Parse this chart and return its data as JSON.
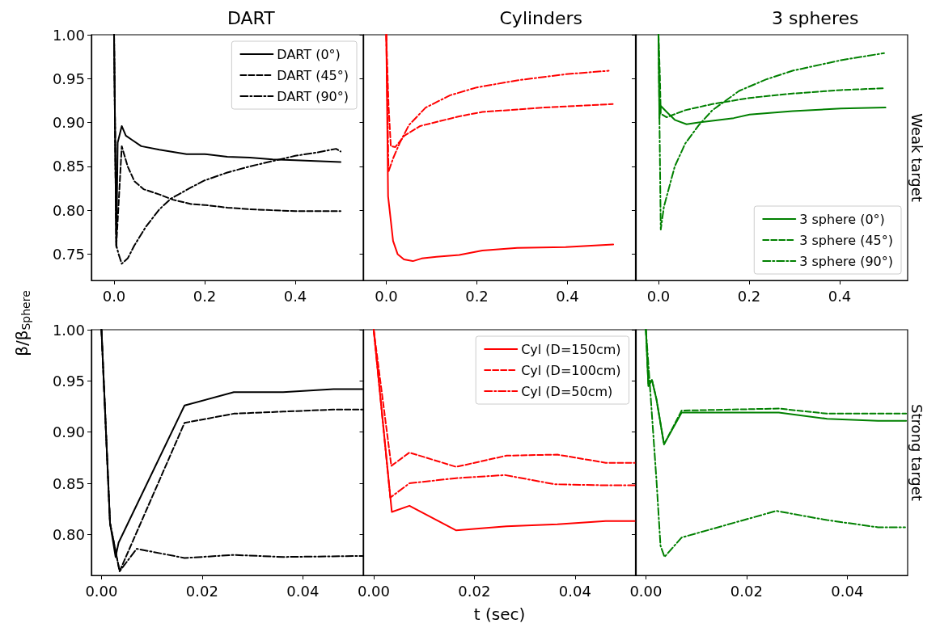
{
  "chart_data": [
    {
      "type": "line",
      "title": "DART",
      "ylabel": "β/β$_{Sphere}$",
      "xlim": [
        -0.05,
        0.55
      ],
      "xticks": [
        {
          "value": 0,
          "label": "0.0"
        },
        {
          "value": 0.2,
          "label": "0.2"
        },
        {
          "value": 0.4,
          "label": "0.4"
        }
      ],
      "ylim": [
        0.72,
        1.0
      ],
      "yticks": [
        0.75,
        {
          "value": 0.8,
          "label": "0.80"
        },
        0.85,
        {
          "value": 0.9,
          "label": "0.90"
        },
        0.95,
        {
          "value": 1,
          "label": "1.00"
        }
      ],
      "grid": false,
      "legend": "top right",
      "marker": "none",
      "series": [
        {
          "name": "DART (0°)",
          "color": "#000000",
          "line_style": "solid",
          "x": [
            0,
            0.005,
            0.008,
            0.017,
            0.026,
            0.04,
            0.06,
            0.1,
            0.16,
            0.2,
            0.25,
            0.3,
            0.35,
            0.4,
            0.5
          ],
          "values": [
            1.0,
            0.758,
            0.877,
            0.896,
            0.885,
            0.88,
            0.873,
            0.869,
            0.864,
            0.864,
            0.861,
            0.86,
            0.858,
            0.857,
            0.855
          ]
        },
        {
          "name": "DART (45°)",
          "color": "#000000",
          "line_style": "dashed",
          "x": [
            0,
            0.005,
            0.017,
            0.03,
            0.045,
            0.065,
            0.1,
            0.13,
            0.17,
            0.2,
            0.25,
            0.3,
            0.4,
            0.5
          ],
          "values": [
            1.0,
            0.76,
            0.873,
            0.85,
            0.833,
            0.824,
            0.818,
            0.812,
            0.807,
            0.806,
            0.803,
            0.801,
            0.799,
            0.799
          ]
        },
        {
          "name": "DART (90°)",
          "color": "#000000",
          "line_style": "dashdot",
          "x": [
            0,
            0.005,
            0.01,
            0.017,
            0.03,
            0.045,
            0.07,
            0.1,
            0.125,
            0.17,
            0.2,
            0.25,
            0.3,
            0.35,
            0.4,
            0.45,
            0.49,
            0.5
          ],
          "values": [
            1.0,
            0.76,
            0.75,
            0.739,
            0.745,
            0.76,
            0.781,
            0.801,
            0.813,
            0.826,
            0.834,
            0.843,
            0.85,
            0.856,
            0.862,
            0.866,
            0.87,
            0.867
          ]
        }
      ]
    },
    {
      "type": "line",
      "title": "Cylinders",
      "xlim": [
        -0.05,
        0.55
      ],
      "xticks": [
        {
          "value": 0,
          "label": "0.0"
        },
        {
          "value": 0.2,
          "label": "0.2"
        },
        {
          "value": 0.4,
          "label": "0.4"
        }
      ],
      "ylim": [
        0.72,
        1.0
      ],
      "yticks": [
        {
          "value": 0.75,
          "label": null
        },
        {
          "value": 0.8,
          "label": null
        },
        {
          "value": 0.85,
          "label": null
        },
        {
          "value": 0.9,
          "label": null
        },
        {
          "value": 0.95,
          "label": null
        },
        {
          "value": 1,
          "label": null
        }
      ],
      "tick_labels": "x",
      "grid": false,
      "marker": "none",
      "series": [
        {
          "color": "#ff0000",
          "line_style": "solid",
          "x": [
            0,
            0.004,
            0.015,
            0.025,
            0.039,
            0.059,
            0.078,
            0.111,
            0.161,
            0.212,
            0.289,
            0.396,
            0.501
          ],
          "values": [
            1.0,
            0.816,
            0.765,
            0.75,
            0.744,
            0.742,
            0.745,
            0.747,
            0.749,
            0.754,
            0.757,
            0.758,
            0.761
          ]
        },
        {
          "color": "#ff0000",
          "line_style": "dashed",
          "x": [
            0,
            0.005,
            0.01,
            0.02,
            0.04,
            0.075,
            0.161,
            0.212,
            0.348,
            0.5
          ],
          "values": [
            1.0,
            0.92,
            0.873,
            0.872,
            0.885,
            0.896,
            0.907,
            0.912,
            0.917,
            0.921
          ]
        },
        {
          "color": "#ff0000",
          "line_style": "dashdot",
          "x": [
            0,
            0.005,
            0.015,
            0.03,
            0.05,
            0.087,
            0.141,
            0.2,
            0.289,
            0.396,
            0.491
          ],
          "values": [
            1.0,
            0.844,
            0.859,
            0.877,
            0.897,
            0.917,
            0.931,
            0.94,
            0.948,
            0.955,
            0.959
          ]
        }
      ]
    },
    {
      "type": "line",
      "title": "3 spheres",
      "y2label": "Weak target",
      "xlim": [
        -0.05,
        0.55
      ],
      "xticks": [
        {
          "value": 0,
          "label": "0.0"
        },
        {
          "value": 0.2,
          "label": "0.2"
        },
        {
          "value": 0.4,
          "label": "0.4"
        }
      ],
      "ylim": [
        0.72,
        1.0
      ],
      "yticks": [
        {
          "value": 0.75,
          "label": null
        },
        {
          "value": 0.8,
          "label": null
        },
        {
          "value": 0.85,
          "label": null
        },
        {
          "value": 0.9,
          "label": null
        },
        {
          "value": 0.95,
          "label": null
        },
        {
          "value": 1,
          "label": null
        }
      ],
      "tick_labels": "x",
      "grid": false,
      "legend": "bottom right",
      "marker": "none",
      "series": [
        {
          "name": "3 sphere (0°)",
          "color": "#008000",
          "line_style": "solid",
          "x": [
            0,
            0.002,
            0.005,
            0.018,
            0.036,
            0.062,
            0.089,
            0.166,
            0.201,
            0.296,
            0.403,
            0.501
          ],
          "values": [
            1.0,
            0.905,
            0.919,
            0.912,
            0.903,
            0.898,
            0.9,
            0.905,
            0.909,
            0.913,
            0.916,
            0.917
          ]
        },
        {
          "name": "3 sphere (45°)",
          "color": "#008000",
          "line_style": "dashed",
          "x": [
            0,
            0.003,
            0.005,
            0.018,
            0.059,
            0.119,
            0.201,
            0.296,
            0.403,
            0.498
          ],
          "values": [
            1.0,
            0.955,
            0.91,
            0.906,
            0.914,
            0.921,
            0.928,
            0.933,
            0.937,
            0.939
          ]
        },
        {
          "name": "3 sphere (90°)",
          "color": "#008000",
          "line_style": "dashdot",
          "x": [
            0,
            0.005,
            0.012,
            0.036,
            0.059,
            0.089,
            0.119,
            0.178,
            0.237,
            0.296,
            0.403,
            0.498
          ],
          "values": [
            1.0,
            0.778,
            0.804,
            0.85,
            0.876,
            0.897,
            0.914,
            0.936,
            0.949,
            0.959,
            0.971,
            0.979
          ]
        }
      ]
    },
    {
      "type": "line",
      "xlim": [
        -0.002,
        0.052
      ],
      "xticks": [
        {
          "value": 0,
          "label": "0.00"
        },
        {
          "value": 0.02,
          "label": "0.02"
        },
        {
          "value": 0.04,
          "label": "0.04"
        }
      ],
      "ylim": [
        0.76,
        1.0
      ],
      "yticks": [
        {
          "value": 0.8,
          "label": "0.80"
        },
        0.85,
        {
          "value": 0.9,
          "label": "0.90"
        },
        0.95,
        {
          "value": 1,
          "label": "1.00"
        }
      ],
      "grid": false,
      "marker": "none",
      "series": [
        {
          "color": "#000000",
          "line_style": "solid",
          "x": [
            0,
            0.0017,
            0.0028,
            0.0034,
            0.0165,
            0.0263,
            0.0361,
            0.0461,
            0.052
          ],
          "values": [
            1.0,
            0.811,
            0.778,
            0.792,
            0.926,
            0.939,
            0.939,
            0.942,
            0.942
          ]
        },
        {
          "color": "#000000",
          "line_style": "dashed",
          "x": [
            0,
            0.0017,
            0.0036,
            0.0165,
            0.0263,
            0.0361,
            0.0461,
            0.052
          ],
          "values": [
            1.0,
            0.811,
            0.764,
            0.909,
            0.918,
            0.92,
            0.922,
            0.922
          ]
        },
        {
          "color": "#000000",
          "line_style": "dashdot",
          "x": [
            0,
            0.0017,
            0.0036,
            0.007,
            0.0165,
            0.0263,
            0.0361,
            0.052
          ],
          "values": [
            1.0,
            0.811,
            0.764,
            0.786,
            0.777,
            0.78,
            0.778,
            0.779
          ]
        }
      ]
    },
    {
      "type": "line",
      "xlabel": "t (sec)",
      "xlim": [
        -0.002,
        0.052
      ],
      "xticks": [
        {
          "value": 0,
          "label": "0.00"
        },
        {
          "value": 0.02,
          "label": "0.02"
        },
        {
          "value": 0.04,
          "label": "0.04"
        }
      ],
      "ylim": [
        0.76,
        1.0
      ],
      "yticks": [
        {
          "value": 0.8,
          "label": null
        },
        {
          "value": 0.85,
          "label": null
        },
        {
          "value": 0.9,
          "label": null
        },
        {
          "value": 0.95,
          "label": null
        },
        {
          "value": 1,
          "label": null
        }
      ],
      "tick_labels": "x",
      "grid": false,
      "legend": "top right",
      "marker": "none",
      "series": [
        {
          "name": "Cyl (D=150cm)",
          "color": "#ff0000",
          "line_style": "solid",
          "x": [
            0,
            0.0036,
            0.0071,
            0.0164,
            0.0264,
            0.0365,
            0.0461,
            0.052
          ],
          "values": [
            1.0,
            0.822,
            0.828,
            0.804,
            0.808,
            0.81,
            0.813,
            0.813
          ]
        },
        {
          "name": "Cyl (D=100cm)",
          "color": "#ff0000",
          "line_style": "dashed",
          "x": [
            0,
            0.0035,
            0.0071,
            0.0164,
            0.0264,
            0.0365,
            0.0461,
            0.052
          ],
          "values": [
            1.0,
            0.867,
            0.88,
            0.866,
            0.877,
            0.878,
            0.87,
            0.87
          ]
        },
        {
          "name": "Cyl (D=50cm)",
          "color": "#ff0000",
          "line_style": "dashdot",
          "x": [
            0,
            0.0033,
            0.0071,
            0.0164,
            0.0261,
            0.036,
            0.0461,
            0.052
          ],
          "values": [
            1.0,
            0.836,
            0.85,
            0.855,
            0.858,
            0.849,
            0.848,
            0.848
          ]
        }
      ]
    },
    {
      "type": "line",
      "y2label": "Strong target",
      "xlim": [
        -0.002,
        0.052
      ],
      "xticks": [
        {
          "value": 0,
          "label": "0.00"
        },
        {
          "value": 0.02,
          "label": "0.02"
        },
        {
          "value": 0.04,
          "label": "0.04"
        }
      ],
      "ylim": [
        0.76,
        1.0
      ],
      "yticks": [
        {
          "value": 0.8,
          "label": null
        },
        {
          "value": 0.85,
          "label": null
        },
        {
          "value": 0.9,
          "label": null
        },
        {
          "value": 0.95,
          "label": null
        },
        {
          "value": 1,
          "label": null
        }
      ],
      "tick_labels": "x",
      "grid": false,
      "marker": "none",
      "series": [
        {
          "color": "#008000",
          "line_style": "solid",
          "x": [
            0,
            0.0005,
            0.0012,
            0.0021,
            0.0036,
            0.0071,
            0.0264,
            0.036,
            0.0461,
            0.0517
          ],
          "values": [
            1.0,
            0.945,
            0.951,
            0.932,
            0.888,
            0.919,
            0.919,
            0.913,
            0.911,
            0.911
          ]
        },
        {
          "color": "#008000",
          "line_style": "dashed",
          "x": [
            0,
            0.0005,
            0.0012,
            0.0021,
            0.0036,
            0.0071,
            0.0264,
            0.036,
            0.0517
          ],
          "values": [
            1.0,
            0.945,
            0.951,
            0.932,
            0.888,
            0.921,
            0.923,
            0.918,
            0.918
          ]
        },
        {
          "color": "#008000",
          "line_style": "dashdot",
          "x": [
            0,
            0.0008,
            0.0021,
            0.0029,
            0.0037,
            0.0071,
            0.0259,
            0.036,
            0.0461,
            0.0515
          ],
          "values": [
            1.0,
            0.945,
            0.853,
            0.789,
            0.778,
            0.797,
            0.823,
            0.814,
            0.807,
            0.807
          ]
        }
      ]
    }
  ]
}
